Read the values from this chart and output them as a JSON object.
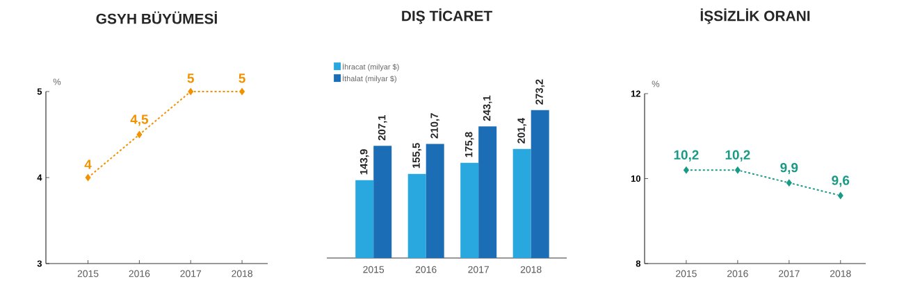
{
  "chart_data": [
    {
      "type": "line",
      "title": "GSYH BÜYÜMESİ",
      "ylabel": "%",
      "categories": [
        "2015",
        "2016",
        "2017",
        "2018"
      ],
      "series": [
        {
          "color": "#f39200",
          "values": [
            4,
            4.5,
            5,
            5
          ],
          "value_labels": [
            "4",
            "4,5",
            "5",
            "5"
          ]
        }
      ],
      "ylim": [
        3,
        5
      ],
      "yticks": [
        3,
        4,
        5
      ],
      "marker": "diamond",
      "line_style": "dashed"
    },
    {
      "type": "bar",
      "title": "DIŞ TİCARET",
      "categories": [
        "2015",
        "2016",
        "2017",
        "2018"
      ],
      "series": [
        {
          "name": "İhracat (milyar $)",
          "color": "#29a8e0",
          "values": [
            143.9,
            155.5,
            175.8,
            201.4
          ],
          "value_labels": [
            "143,9",
            "155,5",
            "175,8",
            "201,4"
          ]
        },
        {
          "name": "İthalat (milyar $)",
          "color": "#1b6db5",
          "values": [
            207.1,
            210.7,
            243.1,
            273.2
          ],
          "value_labels": [
            "207,1",
            "210,7",
            "243,1",
            "273,2"
          ]
        }
      ],
      "legend": "top left",
      "tick_labels": "x"
    },
    {
      "type": "line",
      "title": "İŞSİZLİK ORANI",
      "ylabel": "%",
      "categories": [
        "2015",
        "2016",
        "2017",
        "2018"
      ],
      "series": [
        {
          "color": "#1a9a85",
          "values": [
            10.2,
            10.2,
            9.9,
            9.6
          ],
          "value_labels": [
            "10,2",
            "10,2",
            "9,9",
            "9,6"
          ]
        }
      ],
      "ylim": [
        8,
        12
      ],
      "yticks": [
        8,
        10,
        12
      ],
      "marker": "diamond",
      "line_style": "dashed"
    }
  ]
}
